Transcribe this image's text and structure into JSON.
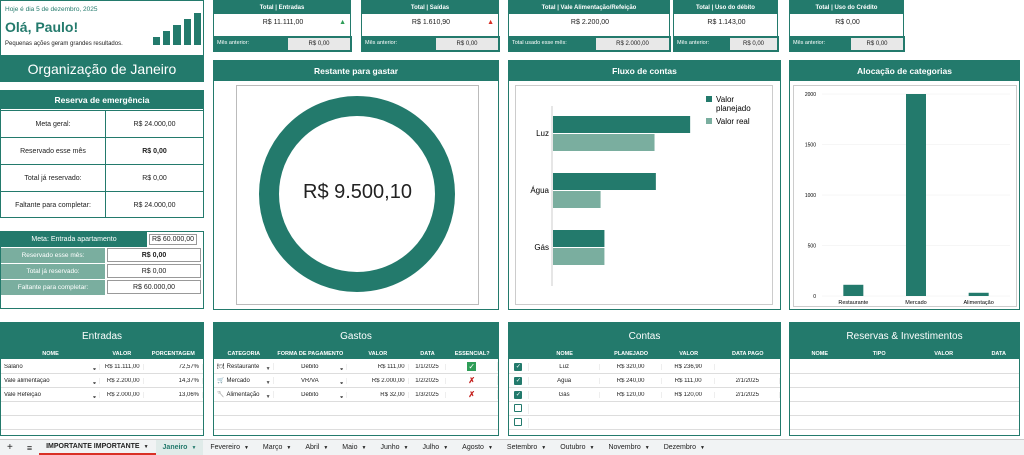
{
  "greeting": {
    "date": "Hoje é dia 5 de dezembro, 2025",
    "hello": "Olá, Paulo!",
    "sub": "Pequenas ações geram grandes resultados."
  },
  "month_title": "Organização de Janeiro",
  "cards": [
    {
      "title": "Total | Entradas",
      "value": "R$ 11.111,00",
      "arrow": "▲",
      "arrow_color": "#2e9d57",
      "prev_label": "Mês anterior:",
      "prev": "R$ 0,00"
    },
    {
      "title": "Total | Saídas",
      "value": "R$ 1.610,90",
      "arrow": "▲",
      "arrow_color": "#d93025",
      "prev_label": "Mês anterior:",
      "prev": "R$ 0,00"
    },
    {
      "title": "Total | Vale Alimentação/Refeição",
      "value": "R$ 2.200,00",
      "prev_label": "Total usado esse mês:",
      "prev": "R$ 2.000,00"
    },
    {
      "title": "Total | Uso do débito",
      "value": "R$ 1.143,00",
      "prev_label": "Mês anterior:",
      "prev": "R$ 0,00"
    },
    {
      "title": "Total | Uso do Crédito",
      "value": "R$ 0,00",
      "prev_label": "Mês anterior:",
      "prev": "R$ 0,00"
    }
  ],
  "reserva": {
    "title": "Reserva de emergência",
    "rows": [
      {
        "label": "Meta geral:",
        "value": "R$ 24.000,00"
      },
      {
        "label": "Reservado esse mês",
        "value": "R$ 0,00"
      },
      {
        "label": "Total já reservado:",
        "value": "R$ 0,00"
      },
      {
        "label": "Faltante para completar:",
        "value": "R$ 24.000,00"
      }
    ]
  },
  "meta": {
    "title": "Meta: Entrada apartamento",
    "value": "R$ 60.000,00",
    "rows": [
      {
        "label": "Reservado esse mês:",
        "value": "R$ 0,00"
      },
      {
        "label": "Total já reservado:",
        "value": "R$ 0,00"
      },
      {
        "label": "Faltante para completar:",
        "value": "R$ 60.000,00"
      }
    ]
  },
  "restante": {
    "title": "Restante para gastar",
    "value": "R$ 9.500,10"
  },
  "fluxo": {
    "title": "Fluxo de contas",
    "legend": [
      "Valor planejado",
      "Valor real"
    ],
    "colors": [
      "#237a6c",
      "#7aae9f"
    ]
  },
  "alocacao": {
    "title": "Alocação de categorias",
    "color": "#237a6c"
  },
  "chart_data": [
    {
      "type": "bar",
      "title": "Fluxo de contas",
      "categories": [
        "Luz",
        "Água",
        "Gás"
      ],
      "series": [
        {
          "name": "Valor planejado",
          "values": [
            320,
            240,
            120
          ]
        },
        {
          "name": "Valor real",
          "values": [
            236.9,
            111,
            120
          ]
        }
      ],
      "orientation": "horizontal"
    },
    {
      "type": "bar",
      "title": "Alocação de categorias",
      "categories": [
        "Restaurante",
        "Mercado",
        "Alimentação"
      ],
      "values": [
        111,
        2000,
        32
      ],
      "ylim": [
        0,
        2000
      ],
      "yticks": [
        "2000",
        "1500",
        "1000",
        "500",
        "0"
      ]
    }
  ],
  "entradas": {
    "title": "Entradas",
    "cols": [
      "NOME",
      "VALOR",
      "PORCENTAGEM"
    ],
    "rows": [
      [
        "Salário",
        "R$ 11.111,00",
        "72,57%"
      ],
      [
        "Vale alimentação",
        "R$ 2.200,00",
        "14,37%"
      ],
      [
        "Vale Refeição",
        "R$ 2.000,00",
        "13,06%"
      ]
    ]
  },
  "gastos": {
    "title": "Gastos",
    "cols": [
      "CATEGORIA",
      "FORMA DE PAGAMENTO",
      "VALOR",
      "DATA",
      "ESSENCIAL?"
    ],
    "rows": [
      [
        "Restaurante",
        "Débito",
        "R$ 111,00",
        "1/1/2025",
        "✓"
      ],
      [
        "Mercado",
        "VR/VA",
        "R$ 2.000,00",
        "1/2/2025",
        "✗"
      ],
      [
        "Alimentação",
        "Débito",
        "R$ 32,00",
        "1/3/2025",
        "✗"
      ]
    ]
  },
  "contas": {
    "title": "Contas",
    "cols": [
      "NOME",
      "PLANEJADO",
      "VALOR",
      "DATA PAGO"
    ],
    "rows": [
      [
        "Luz",
        "R$ 320,00",
        "R$ 236,90",
        ""
      ],
      [
        "Água",
        "R$ 240,00",
        "R$ 111,00",
        "2/1/2025"
      ],
      [
        "Gás",
        "R$ 120,00",
        "R$ 120,00",
        "2/1/2025"
      ]
    ]
  },
  "reservas_inv": {
    "title": "Reservas & Investimentos",
    "cols": [
      "NOME",
      "TIPO",
      "VALOR",
      "DATA"
    ]
  },
  "tabs": [
    "IMPORTANTE IMPORTANTE",
    "Janeiro",
    "Fevereiro",
    "Março",
    "Abril",
    "Maio",
    "Junho",
    "Julho",
    "Agosto",
    "Setembro",
    "Outubro",
    "Novembro",
    "Dezembro"
  ]
}
